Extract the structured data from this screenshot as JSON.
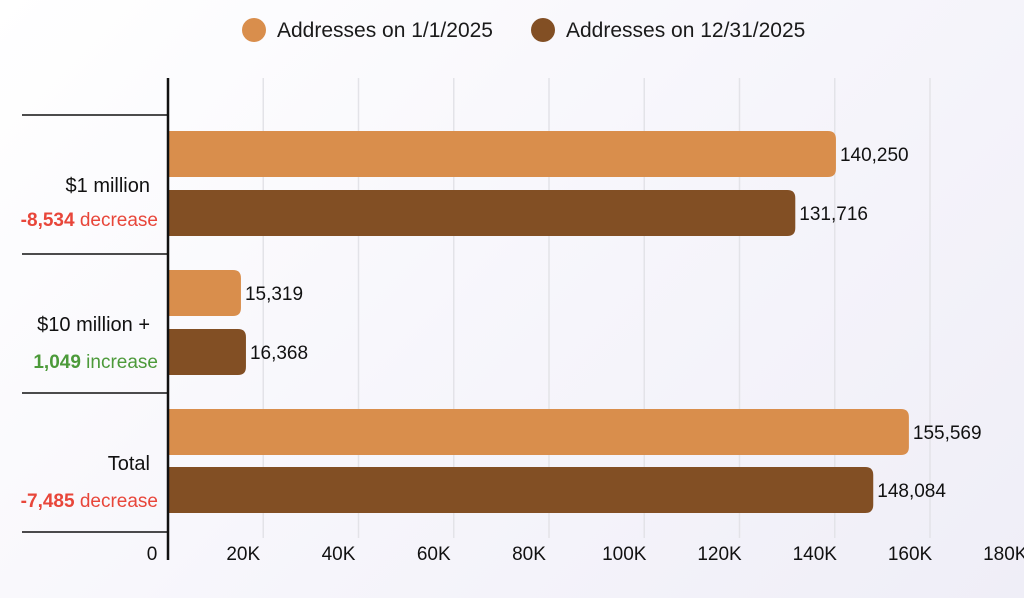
{
  "chart_data": {
    "type": "bar",
    "orientation": "horizontal",
    "categories": [
      "$1 million",
      "$10 million +",
      "Total"
    ],
    "series": [
      {
        "name": "Addresses on 1/1/2025",
        "color": "#d98e4c",
        "values": [
          140250,
          15319,
          155569
        ],
        "labels": [
          "140,250",
          "15,319",
          "155,569"
        ]
      },
      {
        "name": "Addresses on 12/31/2025",
        "color": "#824f24",
        "values": [
          131716,
          16368,
          148084
        ],
        "labels": [
          "131,716",
          "16,368",
          "148,084"
        ]
      }
    ],
    "changes": [
      {
        "number": "-8,534",
        "word": "decrease",
        "color": "#e8463a"
      },
      {
        "number": "1,049",
        "word": "increase",
        "color": "#4c9a3a"
      },
      {
        "number": "-7,485",
        "word": "decrease",
        "color": "#e8463a"
      }
    ],
    "xlim": [
      0,
      180000
    ],
    "xticks": [
      0,
      20000,
      40000,
      60000,
      80000,
      100000,
      120000,
      140000,
      160000,
      180000
    ],
    "xtick_labels": [
      "0",
      "20K",
      "40K",
      "60K",
      "80K",
      "100K",
      "120K",
      "140K",
      "160K",
      "180K"
    ],
    "grid": true,
    "legend_position": "top-center",
    "title": "",
    "xlabel": "",
    "ylabel": ""
  }
}
